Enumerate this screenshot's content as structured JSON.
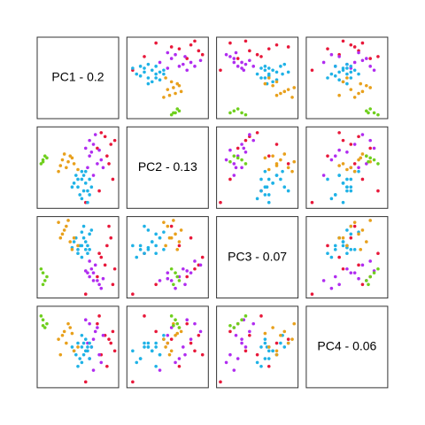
{
  "chart_data": {
    "type": "scatter-matrix",
    "variables": [
      {
        "label": "PC1 - 0.2",
        "lim": [
          -1.05,
          1.05
        ]
      },
      {
        "label": "PC2 - 0.13",
        "lim": [
          -1.05,
          1.05
        ]
      },
      {
        "label": "PC3 - 0.07",
        "lim": [
          -1.05,
          1.05
        ]
      },
      {
        "label": "PC4 - 0.06",
        "lim": [
          -1.05,
          1.05
        ]
      }
    ],
    "series": [
      {
        "color": "#e8183a",
        "values": [
          [
            0.7,
            0.8,
            -0.2,
            0.3
          ],
          [
            0.85,
            0.6,
            0.5,
            0.1
          ],
          [
            0.9,
            -0.3,
            -0.7,
            0.4
          ],
          [
            0.6,
            0.9,
            0.0,
            -0.2
          ],
          [
            0.75,
            0.3,
            0.3,
            -0.5
          ],
          [
            0.5,
            0.5,
            -0.5,
            0.6
          ],
          [
            0.2,
            -0.9,
            -0.95,
            -0.9
          ],
          [
            0.8,
            0.1,
            0.8,
            0.2
          ],
          [
            0.95,
            0.7,
            -0.3,
            -0.1
          ],
          [
            0.55,
            -0.6,
            0.1,
            0.8
          ]
        ]
      },
      {
        "color": "#b02cf0",
        "values": [
          [
            0.4,
            0.6,
            -0.4,
            0.2
          ],
          [
            0.3,
            0.3,
            -0.5,
            -0.3
          ],
          [
            0.5,
            0.1,
            -0.6,
            0.5
          ],
          [
            0.35,
            0.4,
            -0.3,
            0.0
          ],
          [
            0.6,
            0.2,
            -0.8,
            -0.4
          ],
          [
            0.45,
            0.85,
            -0.2,
            0.4
          ],
          [
            0.25,
            0.0,
            -0.4,
            0.1
          ],
          [
            0.55,
            0.45,
            -0.7,
            -0.2
          ],
          [
            0.3,
            0.7,
            -0.1,
            0.6
          ],
          [
            0.65,
            0.0,
            -0.55,
            0.3
          ],
          [
            0.4,
            -0.2,
            -0.6,
            -0.6
          ],
          [
            0.2,
            0.5,
            -0.35,
            0.7
          ]
        ]
      },
      {
        "color": "#1fb2e6",
        "values": [
          [
            0.1,
            -0.3,
            0.3,
            0.0
          ],
          [
            0.2,
            -0.4,
            0.4,
            -0.1
          ],
          [
            0.0,
            -0.5,
            0.2,
            0.1
          ],
          [
            0.15,
            -0.2,
            0.5,
            -0.2
          ],
          [
            0.25,
            -0.6,
            0.1,
            0.0
          ],
          [
            0.05,
            -0.7,
            0.3,
            -0.3
          ],
          [
            0.3,
            -0.3,
            0.6,
            0.1
          ],
          [
            -0.1,
            -0.4,
            0.4,
            -0.1
          ],
          [
            0.2,
            -0.1,
            0.2,
            0.2
          ],
          [
            0.1,
            -0.8,
            0.0,
            -0.4
          ],
          [
            0.35,
            -0.5,
            0.7,
            0.0
          ],
          [
            -0.05,
            -0.2,
            0.5,
            -0.2
          ],
          [
            0.15,
            -0.6,
            0.8,
            0.1
          ],
          [
            0.0,
            -0.3,
            0.1,
            -0.5
          ],
          [
            0.25,
            -0.9,
            0.3,
            -0.1
          ],
          [
            0.1,
            -0.1,
            0.65,
            0.3
          ],
          [
            0.3,
            -0.7,
            0.2,
            -0.3
          ],
          [
            -0.15,
            -0.5,
            0.25,
            0.0
          ]
        ]
      },
      {
        "color": "#e8a01c",
        "values": [
          [
            -0.4,
            0.2,
            0.6,
            0.3
          ],
          [
            -0.3,
            0.0,
            0.8,
            0.1
          ],
          [
            -0.2,
            0.3,
            0.4,
            0.5
          ],
          [
            -0.5,
            -0.1,
            0.9,
            0.2
          ],
          [
            -0.1,
            0.1,
            0.5,
            -0.1
          ],
          [
            -0.35,
            0.35,
            0.7,
            0.4
          ],
          [
            0.0,
            -0.05,
            0.3,
            0.0
          ],
          [
            -0.25,
            0.15,
            0.95,
            0.6
          ],
          [
            -0.45,
            0.05,
            0.5,
            -0.2
          ],
          [
            -0.15,
            0.25,
            0.2,
            0.35
          ]
        ]
      },
      {
        "color": "#6fcf1d",
        "values": [
          [
            -0.9,
            0.2,
            -0.4,
            0.7
          ],
          [
            -0.85,
            0.3,
            -0.6,
            0.5
          ],
          [
            -0.95,
            0.1,
            -0.3,
            0.8
          ],
          [
            -0.8,
            0.25,
            -0.5,
            0.6
          ],
          [
            -0.9,
            0.15,
            -0.7,
            0.55
          ]
        ]
      }
    ]
  }
}
